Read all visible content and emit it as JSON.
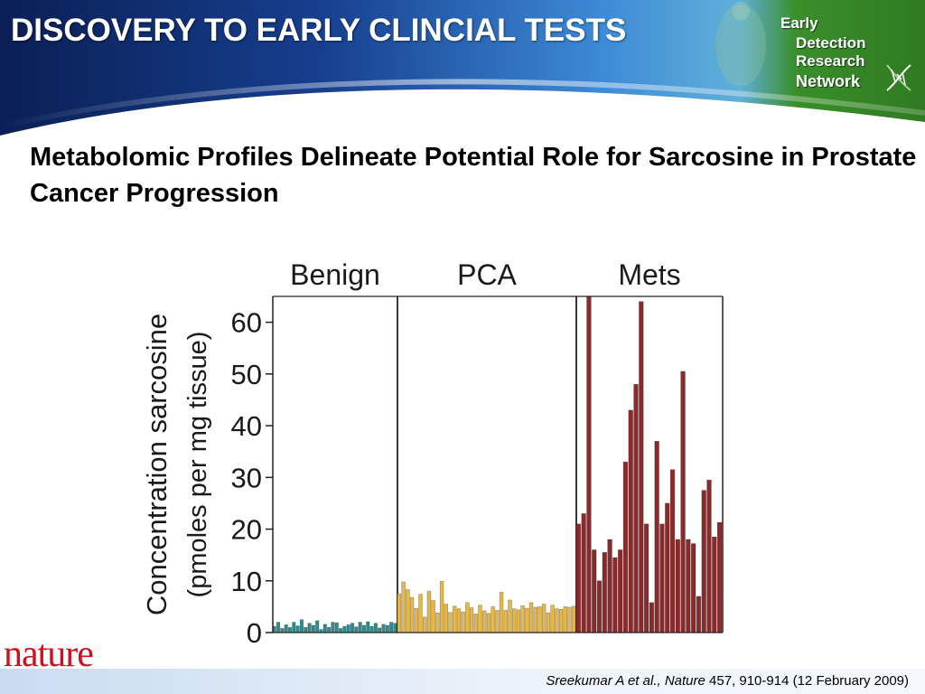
{
  "header": {
    "title": "DISCOVERY TO EARLY CLINCIAL TESTS",
    "logo_lines": [
      "Early",
      "Detection",
      "Research",
      "Network"
    ],
    "logo_icon": "dna-helix-icon"
  },
  "subtitle": "Metabolomic Profiles Delineate Potential Role for Sarcosine in Prostate Cancer Progression",
  "publisher_logo": "nature",
  "citation": {
    "authors": "Sreekumar A et al.,",
    "journal": "Nature",
    "details": "457, 910-914 (12 February 2009)"
  },
  "colors": {
    "header_dark": "#0a2a6b",
    "header_light": "#5aa9e6",
    "green": "#3a8f2a",
    "benign": "#2e8b8e",
    "pca": "#e6b84a",
    "mets": "#8b2a2a",
    "nature_red": "#d0101e"
  },
  "chart_data": {
    "type": "bar",
    "ylabel": "Concentration sarcosine",
    "ylabel_units": "(pmoles per mg tissue)",
    "ylim": [
      0,
      65
    ],
    "yticks": [
      0,
      10,
      20,
      30,
      40,
      50,
      60
    ],
    "grid": false,
    "groups": [
      {
        "name": "Benign",
        "color": "#2e8b8e",
        "values": [
          1.2,
          2.0,
          0.8,
          1.5,
          1.0,
          2.0,
          1.3,
          2.5,
          1.0,
          1.8,
          1.4,
          2.3,
          0.6,
          1.6,
          1.0,
          2.0,
          1.9,
          0.8,
          1.2,
          1.5,
          1.8,
          1.1,
          2.0,
          1.4,
          2.1,
          1.2,
          1.8,
          0.9,
          1.6,
          1.4,
          2.0,
          1.8
        ]
      },
      {
        "name": "PCA",
        "color": "#e6b84a",
        "values": [
          7.5,
          9.8,
          8.3,
          6.8,
          4.7,
          7.4,
          3.0,
          8.0,
          6.2,
          3.8,
          9.9,
          5.5,
          3.9,
          5.1,
          4.6,
          4.0,
          5.8,
          4.8,
          3.6,
          5.3,
          4.2,
          3.7,
          5.0,
          4.3,
          7.8,
          4.3,
          6.3,
          4.6,
          4.4,
          5.2,
          4.7,
          5.8,
          4.9,
          5.0,
          5.5,
          3.8,
          5.3,
          4.6,
          4.5,
          5.0,
          4.9,
          5.1
        ]
      },
      {
        "name": "Mets",
        "color": "#8b2a2a",
        "values": [
          21.0,
          23.0,
          65.0,
          16.0,
          10.0,
          15.5,
          18.0,
          14.5,
          16.0,
          33.0,
          43.0,
          48.0,
          64.0,
          21.0,
          5.8,
          37.0,
          21.0,
          25.0,
          31.5,
          18.0,
          50.5,
          18.0,
          17.2,
          7.0,
          27.5,
          29.5,
          18.5,
          21.3
        ]
      }
    ]
  }
}
